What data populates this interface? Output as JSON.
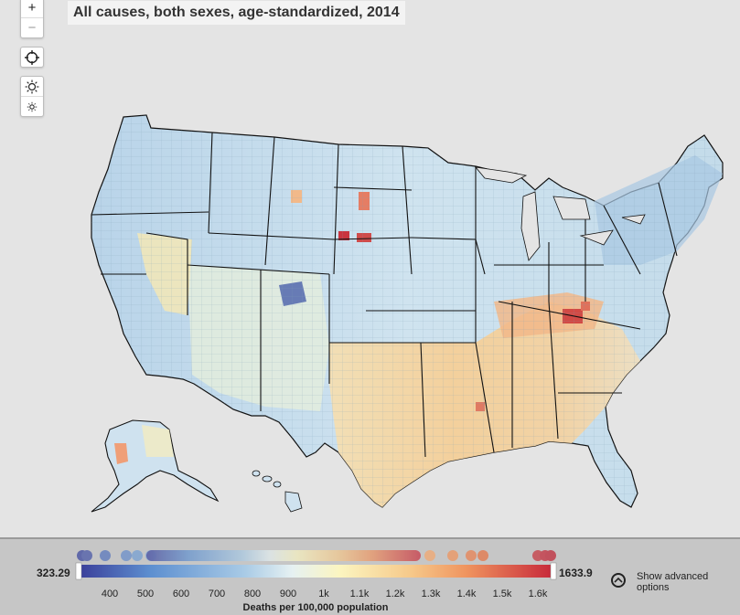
{
  "map": {
    "title": "All causes, both sexes, age-standardized, 2014"
  },
  "controls": {
    "zoom_in": "+",
    "zoom_out": "−"
  },
  "legend": {
    "min_label": "323.29",
    "max_label": "1633.9",
    "min_value": 323.29,
    "max_value": 1633.9,
    "ticks": [
      "400",
      "500",
      "600",
      "700",
      "800",
      "900",
      "1k",
      "1.1k",
      "1.2k",
      "1.3k",
      "1.4k",
      "1.5k",
      "1.6k"
    ],
    "axis_label": "Deaths per 100,000 population",
    "show_advanced": "Show advanced options",
    "colors": [
      "#3f3f9a",
      "#5b8fd0",
      "#a9cbe6",
      "#e6f1f2",
      "#fbf5c0",
      "#f6c98a",
      "#ef935e",
      "#c7283a"
    ]
  }
}
